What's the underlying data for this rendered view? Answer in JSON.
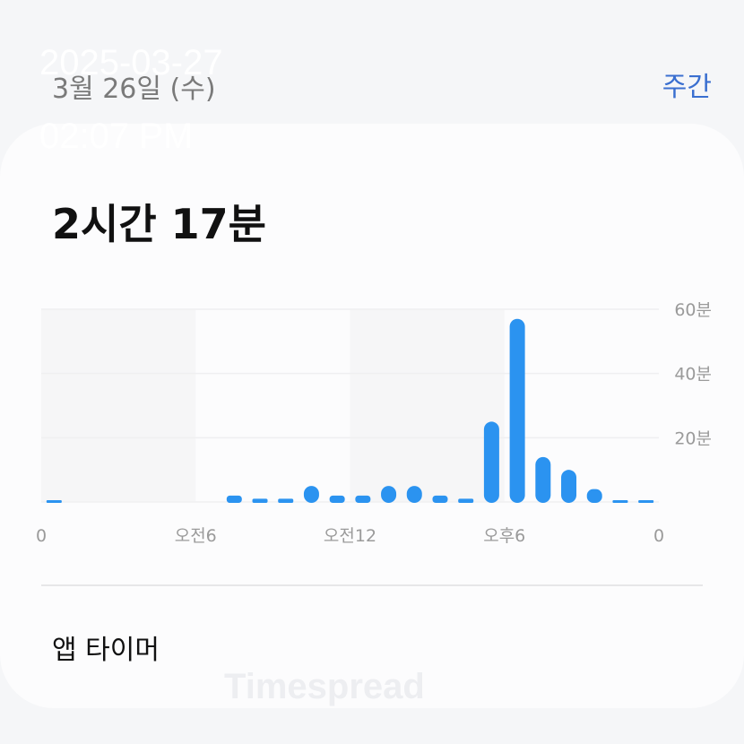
{
  "header": {
    "date": "3월 26일 (수)",
    "weekly_label": "주간"
  },
  "overlay": {
    "date": "2025-03-27",
    "time": "02:07 PM"
  },
  "summary": {
    "total": "2시간 17분"
  },
  "chart_data": {
    "type": "bar",
    "x": [
      0,
      1,
      2,
      3,
      4,
      5,
      6,
      7,
      8,
      9,
      10,
      11,
      12,
      13,
      14,
      15,
      16,
      17,
      18,
      19,
      20,
      21,
      22,
      23
    ],
    "values": [
      0.3,
      0,
      0,
      0,
      0,
      0,
      0,
      2,
      1,
      1,
      5,
      2,
      2,
      5,
      5,
      2,
      1,
      25,
      57,
      14,
      10,
      4,
      0.5,
      0.2
    ],
    "ylim": [
      0,
      60
    ],
    "yticks": [
      {
        "v": 20,
        "label": "20분"
      },
      {
        "v": 40,
        "label": "40분"
      },
      {
        "v": 60,
        "label": "60분"
      }
    ],
    "xticks": [
      {
        "h": 0,
        "label": "0"
      },
      {
        "h": 6,
        "label": "오전6"
      },
      {
        "h": 12,
        "label": "오전12"
      },
      {
        "h": 18,
        "label": "오후6"
      },
      {
        "h": 24,
        "label": "0"
      }
    ],
    "bar_color": "#2b93f0",
    "grid": true
  },
  "section": {
    "app_timer": "앱 타이머"
  },
  "watermark": "Timespread"
}
